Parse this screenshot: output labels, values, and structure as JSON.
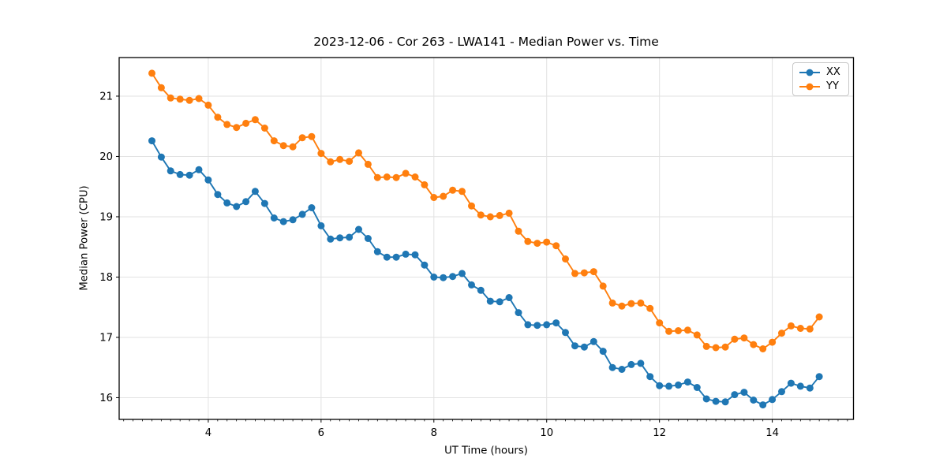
{
  "chart_data": {
    "type": "line",
    "title": "2023-12-06 - Cor 263 - LWA141 - Median Power vs. Time",
    "xlabel": "UT Time (hours)",
    "ylabel": "Median Power (CPU)",
    "xlim": [
      2.42,
      15.44
    ],
    "ylim": [
      15.64,
      21.64
    ],
    "xticks": [
      4,
      6,
      8,
      10,
      12,
      14
    ],
    "yticks": [
      16,
      17,
      18,
      19,
      20,
      21
    ],
    "x_minor_tick_step": 0.1667,
    "grid": true,
    "legend_position": "upper right",
    "x": [
      3.0,
      3.167,
      3.333,
      3.5,
      3.667,
      3.833,
      4.0,
      4.167,
      4.333,
      4.5,
      4.667,
      4.833,
      5.0,
      5.167,
      5.333,
      5.5,
      5.667,
      5.833,
      6.0,
      6.167,
      6.333,
      6.5,
      6.667,
      6.833,
      7.0,
      7.167,
      7.333,
      7.5,
      7.667,
      7.833,
      8.0,
      8.167,
      8.333,
      8.5,
      8.667,
      8.833,
      9.0,
      9.167,
      9.333,
      9.5,
      9.667,
      9.833,
      10.0,
      10.167,
      10.333,
      10.5,
      10.667,
      10.833,
      11.0,
      11.167,
      11.333,
      11.5,
      11.667,
      11.833,
      12.0,
      12.167,
      12.333,
      12.5,
      12.667,
      12.833,
      13.0,
      13.167,
      13.333,
      13.5,
      13.667,
      13.833,
      14.0,
      14.167,
      14.333,
      14.5,
      14.667,
      14.833
    ],
    "series": [
      {
        "name": "XX",
        "color": "#1f77b4",
        "marker": "circle",
        "values": [
          20.26,
          19.99,
          19.76,
          19.7,
          19.69,
          19.78,
          19.61,
          19.37,
          19.23,
          19.17,
          19.25,
          19.42,
          19.22,
          18.98,
          18.92,
          18.95,
          19.04,
          19.15,
          18.85,
          18.63,
          18.65,
          18.66,
          18.79,
          18.64,
          18.42,
          18.33,
          18.33,
          18.38,
          18.37,
          18.2,
          18.0,
          17.99,
          18.01,
          18.06,
          17.87,
          17.78,
          17.6,
          17.59,
          17.66,
          17.41,
          17.21,
          17.2,
          17.21,
          17.24,
          17.08,
          16.86,
          16.84,
          16.93,
          16.77,
          16.5,
          16.47,
          16.55,
          16.57,
          16.35,
          16.2,
          16.19,
          16.21,
          16.26,
          16.17,
          15.98,
          15.94,
          15.93,
          16.05,
          16.09,
          15.96,
          15.88,
          15.97,
          16.1,
          16.24,
          16.19,
          16.16,
          16.35
        ]
      },
      {
        "name": "YY",
        "color": "#ff7f0e",
        "marker": "circle",
        "values": [
          21.38,
          21.14,
          20.97,
          20.95,
          20.93,
          20.96,
          20.85,
          20.65,
          20.53,
          20.48,
          20.55,
          20.61,
          20.47,
          20.26,
          20.18,
          20.16,
          20.31,
          20.33,
          20.05,
          19.91,
          19.95,
          19.92,
          20.06,
          19.87,
          19.65,
          19.66,
          19.65,
          19.72,
          19.66,
          19.53,
          19.32,
          19.34,
          19.44,
          19.42,
          19.18,
          19.03,
          19.0,
          19.02,
          19.06,
          18.76,
          18.59,
          18.56,
          18.58,
          18.52,
          18.3,
          18.06,
          18.07,
          18.09,
          17.85,
          17.57,
          17.52,
          17.56,
          17.57,
          17.48,
          17.24,
          17.1,
          17.11,
          17.12,
          17.04,
          16.85,
          16.83,
          16.84,
          16.97,
          16.99,
          16.88,
          16.81,
          16.92,
          17.07,
          17.19,
          17.15,
          17.14,
          17.34
        ]
      }
    ],
    "style": {
      "grid_color": "#e2e2e2",
      "spine_color": "#000000",
      "tick_label_color": "#000000",
      "background": "#ffffff"
    }
  }
}
